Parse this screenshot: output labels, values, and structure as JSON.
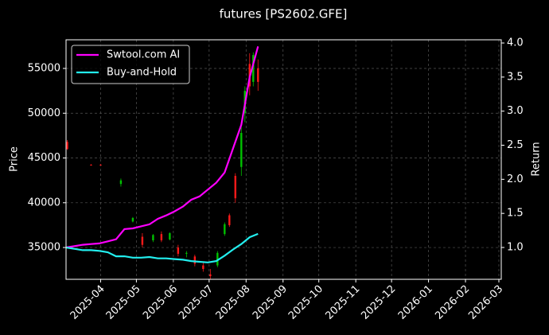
{
  "chart_data": {
    "type": "candlestick",
    "title": "futures [PS2602.GFE]",
    "ylabel": "Price",
    "y2label": "Return",
    "x": [
      "2025-03-04",
      "2025-03-24",
      "2025-04-01",
      "2025-04-18",
      "2025-04-28",
      "2025-05-06",
      "2025-05-15",
      "2025-05-22",
      "2025-05-29",
      "2025-06-05",
      "2025-06-12",
      "2025-06-19",
      "2025-06-26",
      "2025-07-02",
      "2025-07-08",
      "2025-07-14",
      "2025-07-18",
      "2025-07-23",
      "2025-07-28",
      "2025-07-31",
      "2025-08-04",
      "2025-08-07",
      "2025-08-11"
    ],
    "open": [
      46800,
      44250,
      44250,
      42100,
      37900,
      36200,
      35800,
      36500,
      35900,
      35000,
      34300,
      34000,
      33000,
      32000,
      33000,
      36500,
      38600,
      43000,
      44000,
      50000,
      55500,
      53500,
      55000
    ],
    "high": [
      47000,
      44300,
      44300,
      42700,
      38400,
      36600,
      36500,
      36800,
      36700,
      35300,
      34600,
      34200,
      33300,
      32600,
      34600,
      37800,
      38800,
      43300,
      48500,
      53000,
      56700,
      56800,
      56000
    ],
    "low": [
      45900,
      44150,
      44150,
      41800,
      37800,
      35000,
      35600,
      35600,
      35800,
      34000,
      33900,
      32900,
      32300,
      31500,
      32800,
      36300,
      37300,
      40000,
      43000,
      49000,
      52000,
      53000,
      52500
    ],
    "close": [
      46000,
      44200,
      44200,
      42500,
      38300,
      35300,
      36400,
      35800,
      36600,
      34300,
      34400,
      33200,
      32600,
      31800,
      34400,
      37600,
      37500,
      40500,
      47800,
      52500,
      53000,
      56500,
      53500
    ],
    "up_color": "#00c000",
    "down_color": "#ff1a1a",
    "series": [
      {
        "name": "Swtool.com AI",
        "color": "#ff00ff",
        "axis": "y2",
        "x": [
          "2025-03-03",
          "2025-03-10",
          "2025-03-17",
          "2025-03-24",
          "2025-03-31",
          "2025-04-07",
          "2025-04-14",
          "2025-04-21",
          "2025-04-28",
          "2025-05-05",
          "2025-05-12",
          "2025-05-19",
          "2025-05-26",
          "2025-06-02",
          "2025-06-09",
          "2025-06-16",
          "2025-06-23",
          "2025-06-30",
          "2025-07-07",
          "2025-07-14",
          "2025-07-21",
          "2025-07-28",
          "2025-08-04",
          "2025-08-11"
        ],
        "values": [
          1.0,
          1.02,
          1.04,
          1.05,
          1.06,
          1.09,
          1.12,
          1.27,
          1.28,
          1.31,
          1.34,
          1.42,
          1.47,
          1.53,
          1.6,
          1.7,
          1.75,
          1.85,
          1.95,
          2.1,
          2.45,
          2.8,
          3.5,
          3.95
        ]
      },
      {
        "name": "Buy-and-Hold",
        "color": "#22eeee",
        "axis": "y2",
        "x": [
          "2025-03-03",
          "2025-03-10",
          "2025-03-17",
          "2025-03-24",
          "2025-03-31",
          "2025-04-07",
          "2025-04-14",
          "2025-04-21",
          "2025-04-28",
          "2025-05-05",
          "2025-05-12",
          "2025-05-19",
          "2025-05-26",
          "2025-06-02",
          "2025-06-09",
          "2025-06-16",
          "2025-06-23",
          "2025-06-30",
          "2025-07-07",
          "2025-07-14",
          "2025-07-21",
          "2025-07-28",
          "2025-08-04",
          "2025-08-11"
        ],
        "values": [
          1.0,
          0.98,
          0.96,
          0.96,
          0.95,
          0.93,
          0.87,
          0.87,
          0.85,
          0.85,
          0.86,
          0.84,
          0.84,
          0.83,
          0.82,
          0.8,
          0.79,
          0.78,
          0.8,
          0.88,
          0.97,
          1.05,
          1.15,
          1.2
        ]
      }
    ],
    "xlim": [
      "2025-03-03",
      "2026-03-03"
    ],
    "xticks": [
      {
        "value": "2025-04-01",
        "label": "2025-04"
      },
      {
        "value": "2025-05-01",
        "label": "2025-05"
      },
      {
        "value": "2025-06-01",
        "label": "2025-06"
      },
      {
        "value": "2025-07-01",
        "label": "2025-07"
      },
      {
        "value": "2025-08-01",
        "label": "2025-08"
      },
      {
        "value": "2025-09-01",
        "label": "2025-09"
      },
      {
        "value": "2025-10-01",
        "label": "2025-10"
      },
      {
        "value": "2025-11-01",
        "label": "2025-11"
      },
      {
        "value": "2025-12-01",
        "label": "2025-12"
      },
      {
        "value": "2026-01-01",
        "label": "2026-01"
      },
      {
        "value": "2026-02-01",
        "label": "2026-02"
      },
      {
        "value": "2026-03-01",
        "label": "2026-03"
      }
    ],
    "ylim": [
      31450,
      58200
    ],
    "yticks": [
      35000,
      40000,
      45000,
      50000,
      55000
    ],
    "y2lim": [
      0.533,
      4.047
    ],
    "y2ticks": [
      1.0,
      1.5,
      2.0,
      2.5,
      3.0,
      3.5,
      4.0
    ],
    "y2tick_labels": [
      "1.0",
      "1.5",
      "2.0",
      "2.5",
      "3.0",
      "3.5",
      "4.0"
    ],
    "grid": true,
    "legend": "upper left"
  }
}
